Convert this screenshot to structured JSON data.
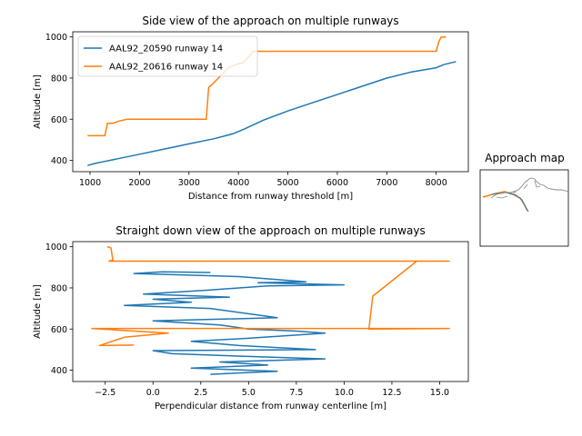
{
  "chart_data": [
    {
      "type": "line",
      "title": "Side view of the approach on multiple runways",
      "xlabel": "Distance from runway threshold [m]",
      "ylabel": "Altitude [m]",
      "xlim": [
        650,
        8650
      ],
      "ylim": [
        345,
        1025
      ],
      "xticks": [
        1000,
        2000,
        3000,
        4000,
        5000,
        6000,
        7000,
        8000
      ],
      "yticks": [
        400,
        600,
        800,
        1000
      ],
      "legend": "top-left",
      "series": [
        {
          "name": "AAL92_20590 runway 14",
          "color": "#1f77b4",
          "x": [
            950,
            1100,
            1300,
            1600,
            2000,
            2500,
            3000,
            3500,
            3900,
            4100,
            4500,
            5000,
            5500,
            6000,
            6500,
            7000,
            7500,
            8000,
            8150,
            8400
          ],
          "y": [
            375,
            385,
            395,
            410,
            430,
            455,
            480,
            505,
            530,
            550,
            595,
            640,
            680,
            720,
            760,
            800,
            830,
            850,
            865,
            880
          ]
        },
        {
          "name": "AAL92_20616 runway 14",
          "color": "#ff7f0e",
          "x": [
            950,
            1300,
            1350,
            1450,
            1600,
            1750,
            3350,
            3400,
            3450,
            3800,
            4000,
            4100,
            4300,
            4600,
            8000,
            8050,
            8100,
            8200
          ],
          "y": [
            520,
            520,
            580,
            580,
            592,
            600,
            600,
            755,
            765,
            850,
            870,
            875,
            930,
            930,
            930,
            975,
            1000,
            1000
          ]
        }
      ]
    },
    {
      "type": "line",
      "title": "Straight down view of the approach on multiple runways",
      "xlabel": "Perpendicular distance from runway centerline [m]",
      "ylabel": "Altitude [m]",
      "xlim": [
        -4.2,
        16.5
      ],
      "ylim": [
        345,
        1025
      ],
      "xticks": [
        -2.5,
        0.0,
        2.5,
        5.0,
        7.5,
        10.0,
        12.5,
        15.0
      ],
      "xticklabels": [
        "−2.5",
        "0.0",
        "2.5",
        "5.0",
        "7.5",
        "10.0",
        "12.5",
        "15.0"
      ],
      "yticks": [
        400,
        600,
        800,
        1000
      ],
      "series": [
        {
          "name": "AAL92_20590 runway 14",
          "color": "#1f77b4",
          "x": [
            3.0,
            0.5,
            -1.0,
            4.5,
            8.0,
            5.5,
            10.0,
            6.0,
            3.0,
            -0.5,
            4.0,
            0.0,
            2.0,
            -1.5,
            3.0,
            6.5,
            0.0,
            3.5,
            5.0,
            7.5,
            9.0,
            5.0,
            2.0,
            4.5,
            8.5,
            0.0,
            1.0,
            5.5,
            9.0,
            3.5,
            6.0,
            2.0,
            6.5,
            3.0
          ],
          "y": [
            875,
            878,
            870,
            855,
            830,
            825,
            815,
            810,
            790,
            770,
            755,
            745,
            730,
            715,
            700,
            655,
            640,
            620,
            600,
            590,
            580,
            555,
            540,
            520,
            500,
            495,
            480,
            465,
            455,
            440,
            425,
            410,
            395,
            380
          ]
        },
        {
          "name": "AAL92_20616 runway 14",
          "color": "#ff7f0e",
          "x": [
            -2.4,
            -2.2,
            -2.1,
            -2.3,
            15.5,
            13.8,
            11.5,
            11.3,
            15.5,
            -3.2,
            0.8,
            -1.5,
            -2.8,
            -1.0
          ],
          "y": [
            1000,
            995,
            935,
            930,
            930,
            930,
            760,
            600,
            603,
            603,
            580,
            560,
            520,
            522
          ]
        }
      ]
    }
  ],
  "map": {
    "title": "Approach map"
  }
}
